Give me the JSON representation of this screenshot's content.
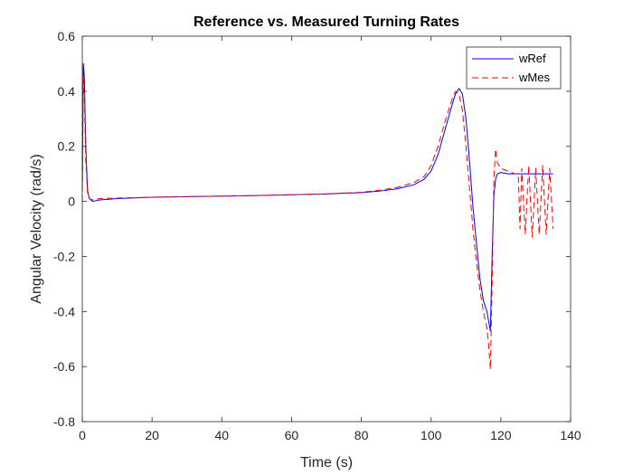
{
  "chart_data": {
    "type": "line",
    "title": "Reference vs. Measured Turning Rates",
    "xlabel": "Time (s)",
    "ylabel": "Angular Velocity (rad/s)",
    "xlim": [
      0,
      140
    ],
    "ylim": [
      -0.8,
      0.6
    ],
    "xticks": [
      0,
      20,
      40,
      60,
      80,
      100,
      120,
      140
    ],
    "yticks": [
      -0.8,
      -0.6,
      -0.4,
      -0.2,
      0,
      0.2,
      0.4,
      0.6
    ],
    "xtick_labels": [
      "0",
      "20",
      "40",
      "60",
      "80",
      "100",
      "120",
      "140"
    ],
    "ytick_labels": [
      "-0.8",
      "-0.6",
      "-0.4",
      "-0.2",
      "0",
      "0.2",
      "0.4",
      "0.6"
    ],
    "grid": false,
    "legend_position": "top-right",
    "series": [
      {
        "name": "wRef",
        "color": "#0000ff",
        "style": "solid",
        "x": [
          0,
          0.3,
          0.6,
          1.0,
          1.5,
          2.0,
          3.0,
          5,
          10,
          20,
          30,
          40,
          50,
          60,
          70,
          80,
          85,
          90,
          95,
          98,
          100,
          102,
          104,
          106,
          107,
          108,
          109,
          110,
          111,
          112,
          113,
          114,
          115,
          116,
          117,
          117.5,
          118,
          118.5,
          119,
          120,
          122,
          124,
          125,
          126,
          128,
          130,
          132,
          134,
          135
        ],
        "y": [
          0.05,
          0.5,
          0.45,
          0.2,
          0.04,
          0.01,
          0.0,
          0.005,
          0.01,
          0.015,
          0.017,
          0.019,
          0.021,
          0.024,
          0.027,
          0.032,
          0.037,
          0.045,
          0.06,
          0.08,
          0.11,
          0.17,
          0.26,
          0.35,
          0.39,
          0.41,
          0.39,
          0.3,
          0.15,
          -0.02,
          -0.15,
          -0.28,
          -0.36,
          -0.4,
          -0.47,
          -0.2,
          0.02,
          0.08,
          0.1,
          0.105,
          0.1,
          0.1,
          0.1,
          0.1,
          0.1,
          0.1,
          0.1,
          0.1,
          0.1
        ]
      },
      {
        "name": "wMes",
        "color": "#ff0000",
        "style": "dashed",
        "x": [
          0,
          0.3,
          0.6,
          1.0,
          1.5,
          2.0,
          3.0,
          5,
          10,
          20,
          30,
          40,
          50,
          60,
          70,
          80,
          85,
          90,
          95,
          98,
          100,
          102,
          104,
          106,
          107,
          108,
          109,
          110,
          111,
          112,
          113,
          114,
          115,
          116,
          116.5,
          117,
          117.5,
          118,
          118.5,
          119,
          120,
          122,
          124,
          125,
          125.5,
          126,
          127,
          128,
          129,
          130,
          131,
          132,
          133,
          134,
          135
        ],
        "y": [
          0.0,
          0.46,
          0.38,
          0.15,
          0.03,
          0.01,
          0.005,
          0.01,
          0.012,
          0.015,
          0.017,
          0.019,
          0.021,
          0.024,
          0.027,
          0.033,
          0.04,
          0.05,
          0.068,
          0.09,
          0.13,
          0.2,
          0.29,
          0.37,
          0.4,
          0.39,
          0.33,
          0.2,
          0.05,
          -0.1,
          -0.22,
          -0.32,
          -0.4,
          -0.46,
          -0.52,
          -0.61,
          -0.3,
          0.08,
          0.19,
          0.14,
          0.12,
          0.11,
          0.1,
          0.1,
          -0.1,
          0.12,
          -0.12,
          0.13,
          -0.13,
          0.12,
          -0.12,
          0.13,
          -0.12,
          0.12,
          -0.1
        ]
      }
    ]
  }
}
